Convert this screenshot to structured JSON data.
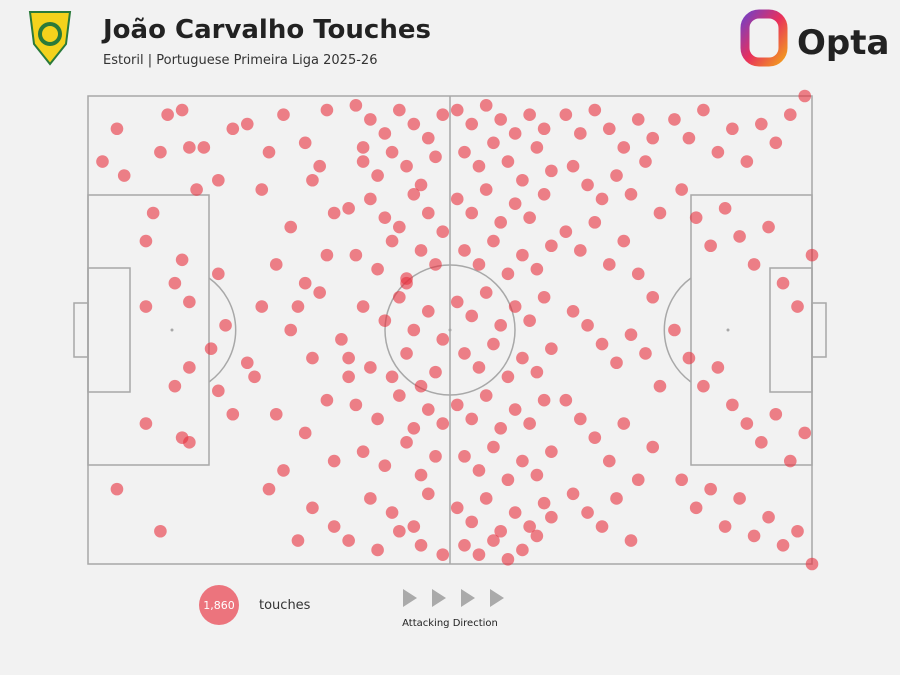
{
  "chart_data": {
    "type": "scatter",
    "title": "João Carvalho Touches",
    "subtitle": "Estoril | Portuguese Primeira Liga 2025-26",
    "brand": "Opta",
    "total": {
      "value": 1860,
      "label": "1,860"
    },
    "total_caption": "touches",
    "direction_label": "Attacking Direction",
    "color": "#e8303d",
    "xlim": [
      0,
      100
    ],
    "ylim": [
      0,
      100
    ],
    "x": [
      13,
      4,
      2,
      10,
      16,
      11,
      5,
      14,
      20,
      18,
      9,
      15,
      13,
      8,
      12,
      14,
      18,
      19,
      8,
      14,
      12,
      18,
      20,
      14,
      8,
      4,
      10,
      13,
      17,
      22,
      22,
      25,
      27,
      30,
      33,
      24,
      28,
      31,
      34,
      26,
      29,
      32,
      35,
      23,
      26,
      30,
      33,
      27,
      31,
      34,
      28,
      31,
      25,
      34,
      36,
      30,
      33,
      24,
      29,
      32,
      37,
      39,
      41,
      43,
      45,
      47,
      49,
      38,
      40,
      42,
      44,
      46,
      48,
      36,
      39,
      41,
      43,
      45,
      47,
      49,
      37,
      40,
      42,
      44,
      46,
      48,
      38,
      41,
      43,
      45,
      47,
      49,
      36,
      39,
      42,
      44,
      46,
      48,
      37,
      40,
      43,
      45,
      47,
      49,
      38,
      41,
      44,
      46,
      48,
      39,
      42,
      45,
      47,
      36,
      40,
      43,
      46,
      49,
      38,
      44,
      51,
      53,
      55,
      57,
      59,
      61,
      63,
      52,
      54,
      56,
      58,
      60,
      62,
      64,
      51,
      53,
      55,
      57,
      59,
      61,
      63,
      52,
      54,
      56,
      58,
      60,
      62,
      64,
      51,
      53,
      55,
      57,
      59,
      61,
      63,
      52,
      54,
      56,
      58,
      60,
      62,
      64,
      51,
      53,
      55,
      57,
      59,
      61,
      63,
      52,
      54,
      56,
      58,
      60,
      62,
      64,
      51,
      53,
      55,
      57,
      59,
      61,
      63,
      52,
      54,
      56,
      58,
      60,
      62,
      64,
      66,
      68,
      70,
      72,
      74,
      76,
      78,
      67,
      69,
      71,
      73,
      75,
      77,
      79,
      66,
      68,
      70,
      72,
      74,
      76,
      78,
      67,
      69,
      71,
      73,
      75,
      77,
      79,
      66,
      68,
      70,
      72,
      74,
      76,
      78,
      67,
      69,
      71,
      73,
      75,
      81,
      83,
      85,
      87,
      89,
      91,
      93,
      95,
      97,
      99,
      82,
      84,
      86,
      88,
      90,
      92,
      94,
      96,
      98,
      100,
      81,
      83,
      85,
      87,
      89,
      91,
      93,
      95,
      97,
      99,
      82,
      84,
      86,
      88,
      90,
      92,
      94,
      96,
      98,
      100
    ],
    "y": [
      3,
      7,
      14,
      12,
      11,
      4,
      17,
      11,
      7,
      18,
      25,
      20,
      35,
      31,
      40,
      44,
      38,
      49,
      45,
      58,
      62,
      63,
      68,
      74,
      70,
      84,
      93,
      73,
      54,
      57,
      6,
      12,
      4,
      10,
      3,
      20,
      28,
      18,
      25,
      36,
      45,
      42,
      52,
      60,
      68,
      72,
      65,
      80,
      88,
      92,
      50,
      56,
      84,
      78,
      60,
      40,
      34,
      45,
      95,
      15,
      2,
      5,
      8,
      3,
      6,
      9,
      4,
      14,
      17,
      12,
      15,
      19,
      13,
      24,
      22,
      26,
      28,
      21,
      25,
      29,
      34,
      37,
      31,
      39,
      33,
      36,
      45,
      48,
      43,
      50,
      46,
      52,
      56,
      58,
      60,
      55,
      62,
      59,
      66,
      69,
      64,
      71,
      67,
      70,
      76,
      79,
      74,
      81,
      77,
      86,
      89,
      92,
      85,
      95,
      97,
      93,
      96,
      98,
      11,
      40,
      3,
      6,
      2,
      5,
      8,
      4,
      7,
      12,
      15,
      10,
      14,
      18,
      11,
      16,
      22,
      25,
      20,
      27,
      23,
      26,
      21,
      33,
      36,
      31,
      38,
      34,
      37,
      32,
      44,
      47,
      42,
      49,
      45,
      48,
      43,
      55,
      58,
      53,
      60,
      56,
      59,
      54,
      66,
      69,
      64,
      71,
      67,
      70,
      65,
      77,
      80,
      75,
      82,
      78,
      81,
      76,
      88,
      91,
      86,
      93,
      89,
      92,
      87,
      96,
      98,
      95,
      99,
      97,
      94,
      90,
      4,
      8,
      3,
      7,
      11,
      5,
      9,
      15,
      19,
      22,
      17,
      21,
      14,
      25,
      29,
      33,
      27,
      36,
      31,
      38,
      43,
      46,
      49,
      53,
      57,
      51,
      55,
      62,
      65,
      69,
      73,
      78,
      70,
      82,
      75,
      85,
      89,
      92,
      86,
      95,
      5,
      9,
      3,
      12,
      7,
      14,
      6,
      10,
      4,
      0,
      20,
      26,
      32,
      24,
      30,
      36,
      28,
      40,
      45,
      34,
      50,
      56,
      62,
      58,
      66,
      70,
      74,
      68,
      78,
      72,
      82,
      88,
      84,
      92,
      86,
      94,
      90,
      96,
      93,
      100
    ]
  }
}
